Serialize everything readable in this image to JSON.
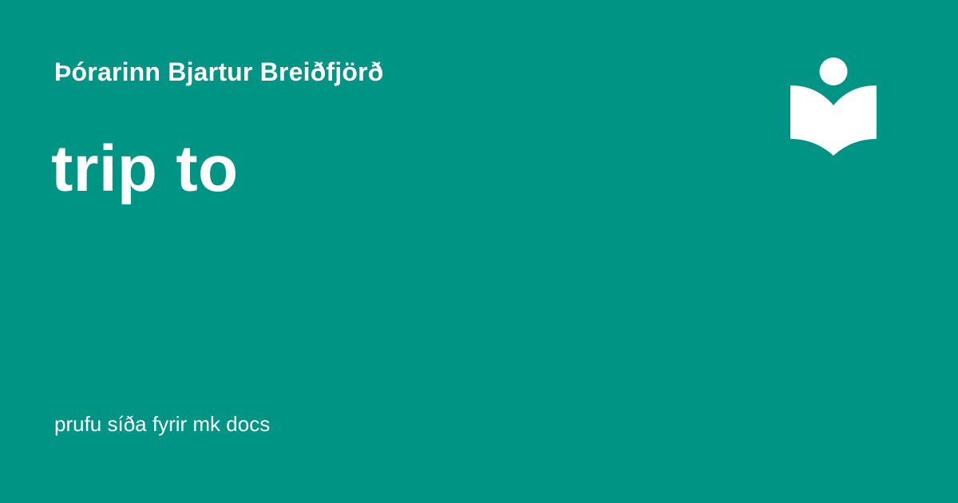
{
  "header": {
    "author": "Þórarinn Bjartur Breiðfjörð",
    "title": "trip to"
  },
  "footer": {
    "site_description": "prufu síða fyrir mk docs"
  },
  "logo": {
    "icon": "reading-book-icon",
    "color": "#ffffff"
  },
  "colors": {
    "background": "#009485",
    "text": "#ffffff"
  }
}
